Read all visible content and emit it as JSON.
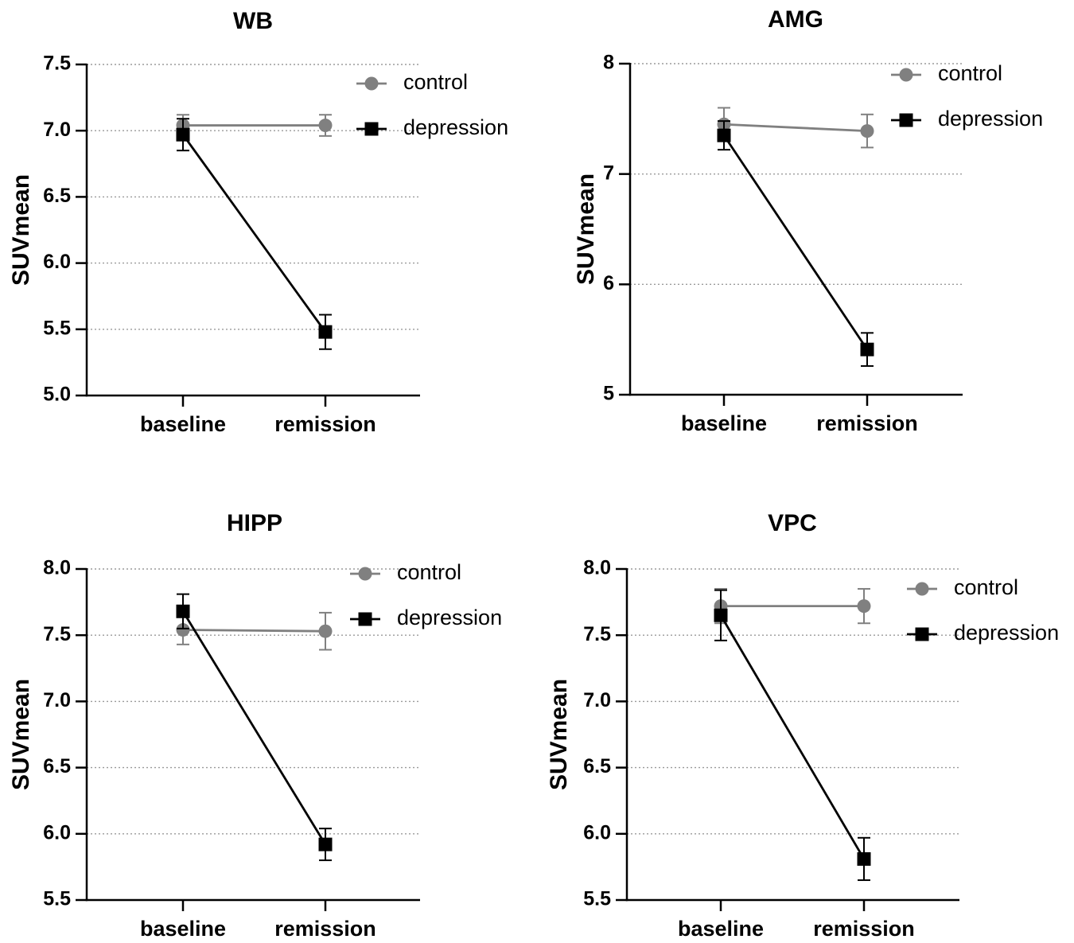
{
  "chart_data": [
    {
      "type": "line",
      "title": "WB",
      "ylabel": "SUVmean",
      "xlabel": "",
      "categories": [
        "baseline",
        "remission"
      ],
      "ylim": [
        5.0,
        7.5
      ],
      "yticks": [
        "5.0",
        "5.5",
        "6.0",
        "6.5",
        "7.0",
        "7.5"
      ],
      "grid": "horizontal-dotted",
      "legend_position": "top-right",
      "series": [
        {
          "name": "control",
          "marker": "circle",
          "color": "#808080",
          "values": [
            7.04,
            7.04
          ],
          "errors": [
            0.08,
            0.08
          ]
        },
        {
          "name": "depression",
          "marker": "square",
          "color": "#000000",
          "values": [
            6.97,
            5.48
          ],
          "errors": [
            0.12,
            0.13
          ]
        }
      ]
    },
    {
      "type": "line",
      "title": "AMG",
      "ylabel": "SUVmean",
      "xlabel": "",
      "categories": [
        "baseline",
        "remission"
      ],
      "ylim": [
        5,
        8
      ],
      "yticks": [
        "5",
        "6",
        "7",
        "8"
      ],
      "grid": "horizontal-dotted",
      "legend_position": "top-right",
      "series": [
        {
          "name": "control",
          "marker": "circle",
          "color": "#808080",
          "values": [
            7.45,
            7.39
          ],
          "errors": [
            0.15,
            0.15
          ]
        },
        {
          "name": "depression",
          "marker": "square",
          "color": "#000000",
          "values": [
            7.35,
            5.41
          ],
          "errors": [
            0.13,
            0.15
          ]
        }
      ]
    },
    {
      "type": "line",
      "title": "HIPP",
      "ylabel": "SUVmean",
      "xlabel": "",
      "categories": [
        "baseline",
        "remission"
      ],
      "ylim": [
        5.5,
        8.0
      ],
      "yticks": [
        "5.5",
        "6.0",
        "6.5",
        "7.0",
        "7.5",
        "8.0"
      ],
      "grid": "horizontal-dotted",
      "legend_position": "top-right",
      "series": [
        {
          "name": "control",
          "marker": "circle",
          "color": "#808080",
          "values": [
            7.54,
            7.53
          ],
          "errors": [
            0.11,
            0.14
          ]
        },
        {
          "name": "depression",
          "marker": "square",
          "color": "#000000",
          "values": [
            7.68,
            5.92
          ],
          "errors": [
            0.13,
            0.12
          ]
        }
      ]
    },
    {
      "type": "line",
      "title": "VPC",
      "ylabel": "SUVmean",
      "xlabel": "",
      "categories": [
        "baseline",
        "remission"
      ],
      "ylim": [
        5.5,
        8.0
      ],
      "yticks": [
        "5.5",
        "6.0",
        "6.5",
        "7.0",
        "7.5",
        "8.0"
      ],
      "grid": "horizontal-dotted",
      "legend_position": "top-right",
      "series": [
        {
          "name": "control",
          "marker": "circle",
          "color": "#808080",
          "values": [
            7.72,
            7.72
          ],
          "errors": [
            0.13,
            0.13
          ]
        },
        {
          "name": "depression",
          "marker": "square",
          "color": "#000000",
          "values": [
            7.65,
            5.81
          ],
          "errors": [
            0.19,
            0.16
          ]
        }
      ]
    }
  ]
}
